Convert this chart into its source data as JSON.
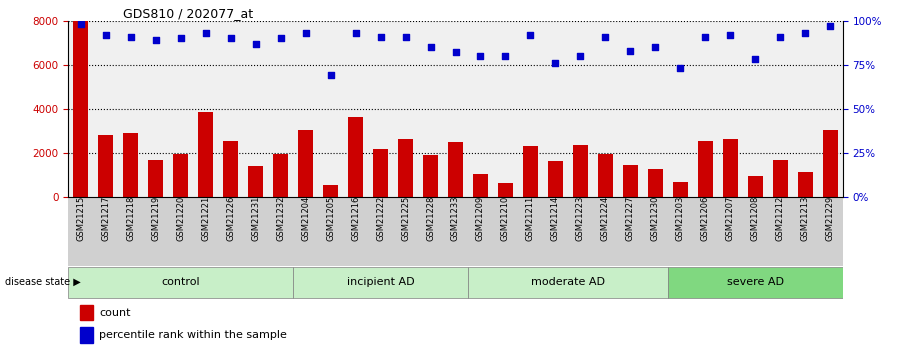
{
  "title": "GDS810 / 202077_at",
  "samples": [
    "GSM21215",
    "GSM21217",
    "GSM21218",
    "GSM21219",
    "GSM21220",
    "GSM21221",
    "GSM21226",
    "GSM21231",
    "GSM21232",
    "GSM21204",
    "GSM21205",
    "GSM21216",
    "GSM21222",
    "GSM21225",
    "GSM21228",
    "GSM21233",
    "GSM21209",
    "GSM21210",
    "GSM21211",
    "GSM21214",
    "GSM21223",
    "GSM21224",
    "GSM21227",
    "GSM21230",
    "GSM21203",
    "GSM21206",
    "GSM21207",
    "GSM21208",
    "GSM21212",
    "GSM21213",
    "GSM21229"
  ],
  "counts": [
    8000,
    2800,
    2900,
    1650,
    1950,
    3850,
    2550,
    1400,
    1950,
    3050,
    550,
    3600,
    2150,
    2600,
    1900,
    2500,
    1050,
    600,
    2300,
    1600,
    2350,
    1950,
    1450,
    1250,
    650,
    2550,
    2600,
    950,
    1650,
    1100,
    3050
  ],
  "percentiles": [
    98,
    92,
    91,
    89,
    90,
    93,
    90,
    87,
    90,
    93,
    69,
    93,
    91,
    91,
    85,
    82,
    80,
    80,
    92,
    76,
    80,
    91,
    83,
    85,
    73,
    91,
    92,
    78,
    91,
    93,
    97
  ],
  "group_info": [
    {
      "name": "control",
      "start": 0,
      "end": 9,
      "color": "#c8efc8"
    },
    {
      "name": "incipient AD",
      "start": 9,
      "end": 16,
      "color": "#c8efc8"
    },
    {
      "name": "moderate AD",
      "start": 16,
      "end": 24,
      "color": "#c8efc8"
    },
    {
      "name": "severe AD",
      "start": 24,
      "end": 31,
      "color": "#80d880"
    }
  ],
  "bar_color": "#cc0000",
  "dot_color": "#0000cc",
  "left_ylim": [
    0,
    8000
  ],
  "right_ylim": [
    0,
    100
  ],
  "left_yticks": [
    0,
    2000,
    4000,
    6000,
    8000
  ],
  "right_yticks": [
    0,
    25,
    50,
    75,
    100
  ],
  "grid_values": [
    2000,
    4000,
    6000,
    8000
  ],
  "plot_bg": "#f0f0f0"
}
